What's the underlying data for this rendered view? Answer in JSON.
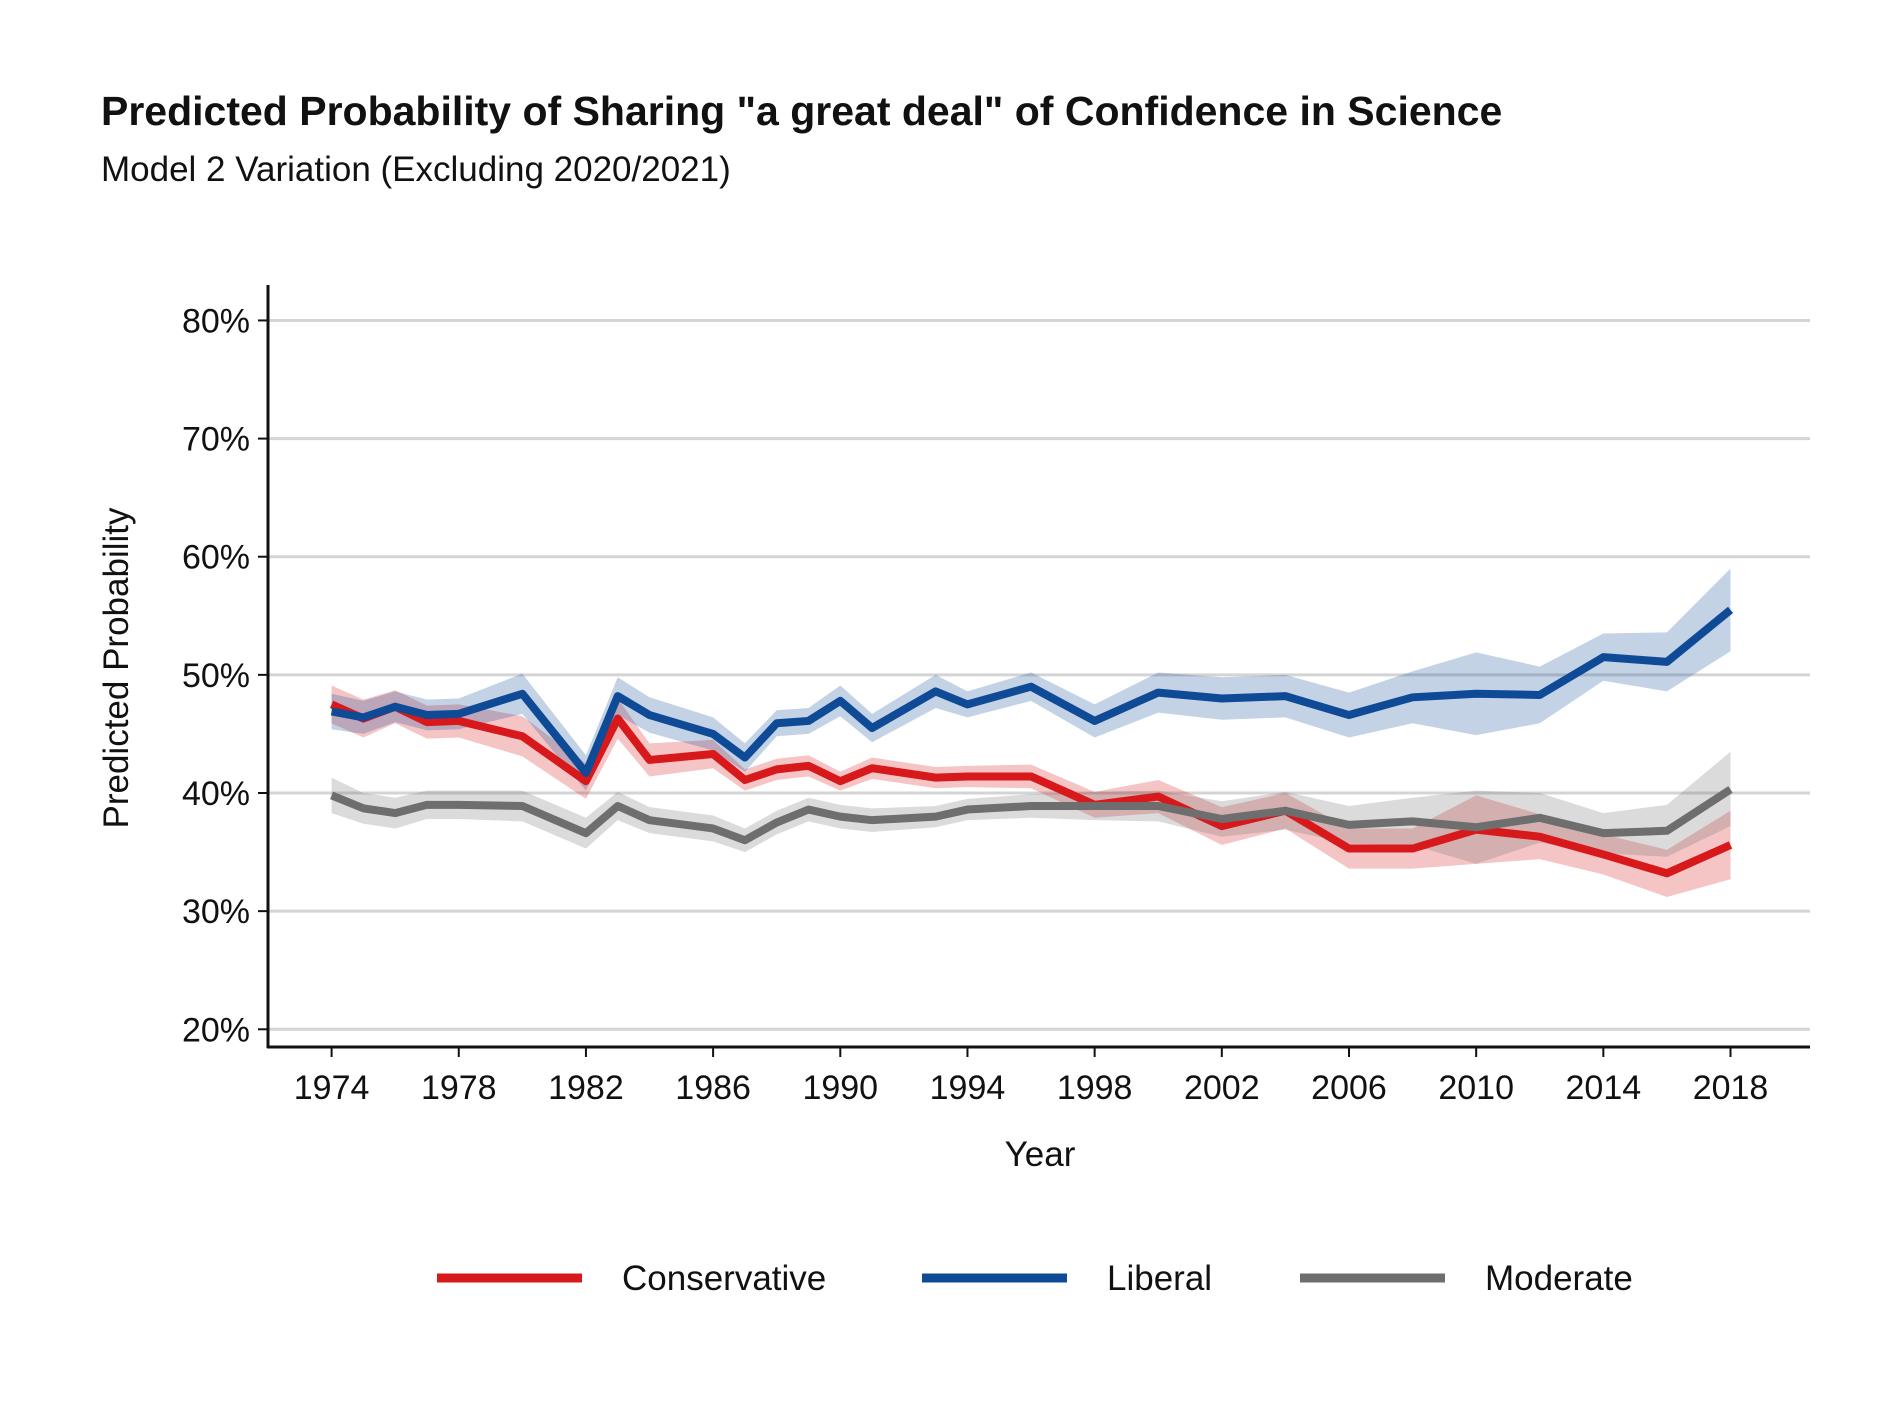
{
  "chart_data": {
    "type": "line",
    "title": "Predicted Probability of Sharing \"a great deal\" of Confidence in Science",
    "subtitle": "Model 2 Variation (Excluding 2020/2021)",
    "xlabel": "Year",
    "ylabel": "Predicted Probability",
    "xlim": [
      1972,
      2020.5
    ],
    "ylim": [
      18.5,
      83
    ],
    "x_ticks": [
      "1974",
      "1978",
      "1982",
      "1986",
      "1990",
      "1994",
      "1998",
      "2002",
      "2006",
      "2010",
      "2014",
      "2018"
    ],
    "y_ticks": [
      "20%",
      "30%",
      "40%",
      "50%",
      "60%",
      "70%",
      "80%"
    ],
    "grid": "horizontal",
    "legend_position": "bottom",
    "series": [
      {
        "name": "Conservative",
        "color": "#d7191c",
        "x": [
          1974,
          1975,
          1976,
          1977,
          1978,
          1980,
          1982,
          1983,
          1984,
          1986,
          1987,
          1988,
          1989,
          1990,
          1991,
          1993,
          1994,
          1996,
          1998,
          2000,
          2002,
          2004,
          2006,
          2008,
          2010,
          2012,
          2014,
          2016,
          2018
        ],
        "y": [
          47.5,
          46.3,
          47.3,
          46.0,
          46.1,
          44.8,
          41.0,
          46.3,
          42.8,
          43.3,
          41.1,
          42.0,
          42.3,
          41.0,
          42.1,
          41.3,
          41.4,
          41.4,
          39.0,
          39.7,
          37.2,
          38.5,
          35.3,
          35.3,
          36.9,
          36.3,
          34.8,
          33.2,
          35.6
        ],
        "lower": [
          45.9,
          44.7,
          45.9,
          44.6,
          44.7,
          43.1,
          39.5,
          44.6,
          41.4,
          42.1,
          40.2,
          41.1,
          41.4,
          40.2,
          41.2,
          40.4,
          40.5,
          40.4,
          37.9,
          38.3,
          35.6,
          37.0,
          33.6,
          33.6,
          34.0,
          34.4,
          33.1,
          31.2,
          32.7
        ],
        "upper": [
          49.1,
          47.9,
          48.7,
          47.4,
          47.5,
          46.5,
          42.5,
          48.0,
          44.2,
          44.5,
          42.0,
          42.9,
          43.2,
          41.8,
          43.0,
          42.2,
          42.3,
          42.4,
          40.1,
          41.1,
          38.8,
          40.0,
          37.0,
          37.0,
          39.8,
          38.2,
          36.5,
          35.2,
          38.5
        ]
      },
      {
        "name": "Liberal",
        "color": "#0f4a97",
        "x": [
          1974,
          1975,
          1976,
          1977,
          1978,
          1980,
          1982,
          1983,
          1984,
          1986,
          1987,
          1988,
          1989,
          1990,
          1991,
          1993,
          1994,
          1996,
          1998,
          2000,
          2002,
          2004,
          2006,
          2008,
          2010,
          2012,
          2014,
          2016,
          2018
        ],
        "y": [
          46.9,
          46.4,
          47.3,
          46.6,
          46.7,
          48.4,
          41.7,
          48.2,
          46.6,
          45.0,
          43.0,
          45.9,
          46.1,
          47.8,
          45.5,
          48.6,
          47.5,
          49.0,
          46.1,
          48.5,
          48.0,
          48.2,
          46.6,
          48.1,
          48.4,
          48.3,
          51.5,
          51.1,
          55.5
        ],
        "lower": [
          45.4,
          45.0,
          46.0,
          45.3,
          45.4,
          46.7,
          40.2,
          46.6,
          45.1,
          43.6,
          41.8,
          44.8,
          45.0,
          46.5,
          44.3,
          47.2,
          46.4,
          47.8,
          44.7,
          46.8,
          46.2,
          46.4,
          44.7,
          45.9,
          44.9,
          45.9,
          49.5,
          48.6,
          52.0
        ],
        "upper": [
          48.4,
          47.8,
          48.6,
          47.9,
          48.0,
          50.1,
          43.2,
          49.8,
          48.1,
          46.4,
          44.2,
          47.0,
          47.2,
          49.1,
          46.7,
          50.0,
          48.6,
          50.2,
          47.5,
          50.2,
          49.8,
          50.0,
          48.5,
          50.3,
          51.9,
          50.7,
          53.5,
          53.6,
          59.0
        ]
      },
      {
        "name": "Moderate",
        "color": "#6e6e6e",
        "x": [
          1974,
          1975,
          1976,
          1977,
          1978,
          1980,
          1982,
          1983,
          1984,
          1986,
          1987,
          1988,
          1989,
          1990,
          1991,
          1993,
          1994,
          1996,
          1998,
          2000,
          2002,
          2004,
          2006,
          2008,
          2010,
          2012,
          2014,
          2016,
          2018
        ],
        "y": [
          39.8,
          38.7,
          38.3,
          39.0,
          39.0,
          38.9,
          36.6,
          38.9,
          37.7,
          37.0,
          36.0,
          37.5,
          38.6,
          38.0,
          37.7,
          38.0,
          38.6,
          38.9,
          38.9,
          38.9,
          37.8,
          38.5,
          37.3,
          37.6,
          37.1,
          37.9,
          36.6,
          36.8,
          40.3
        ],
        "lower": [
          38.3,
          37.4,
          37.0,
          37.8,
          37.8,
          37.6,
          35.3,
          37.7,
          36.6,
          35.9,
          35.0,
          36.5,
          37.6,
          37.0,
          36.7,
          37.1,
          37.7,
          37.9,
          37.7,
          37.6,
          36.3,
          36.9,
          35.7,
          35.6,
          34.0,
          35.8,
          34.9,
          34.6,
          37.2
        ],
        "upper": [
          41.3,
          40.0,
          39.6,
          40.2,
          40.2,
          40.2,
          37.9,
          40.1,
          38.8,
          38.1,
          37.0,
          38.5,
          39.6,
          39.0,
          38.7,
          38.9,
          39.5,
          39.9,
          40.1,
          40.2,
          39.3,
          40.1,
          38.9,
          39.6,
          40.2,
          40.0,
          38.3,
          39.0,
          43.5
        ]
      }
    ]
  }
}
